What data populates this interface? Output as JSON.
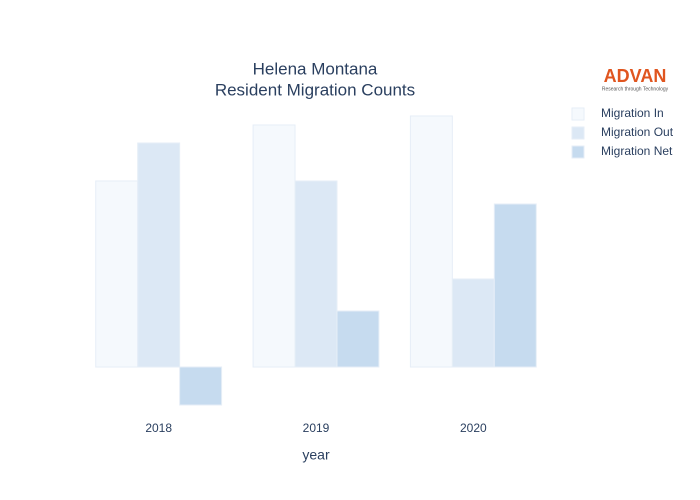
{
  "chart_data": {
    "type": "bar",
    "title": "Helena Montana",
    "subtitle": "Resident Migration Counts",
    "x_label": "year",
    "categories": [
      "2018",
      "2019",
      "2020"
    ],
    "series": [
      {
        "name": "Migration In",
        "color": "#f5f9fd",
        "values": [
          186,
          242,
          251
        ]
      },
      {
        "name": "Migration Out",
        "color": "#dce8f5",
        "values": [
          224,
          186,
          88
        ]
      },
      {
        "name": "Migration Net",
        "color": "#c6dbef",
        "values": [
          -38,
          56,
          163
        ]
      }
    ],
    "ylim": [
      -60,
      260
    ],
    "legend": "top-right"
  },
  "logo": {
    "name": "ADVAN",
    "tagline": "Research through Technology"
  }
}
